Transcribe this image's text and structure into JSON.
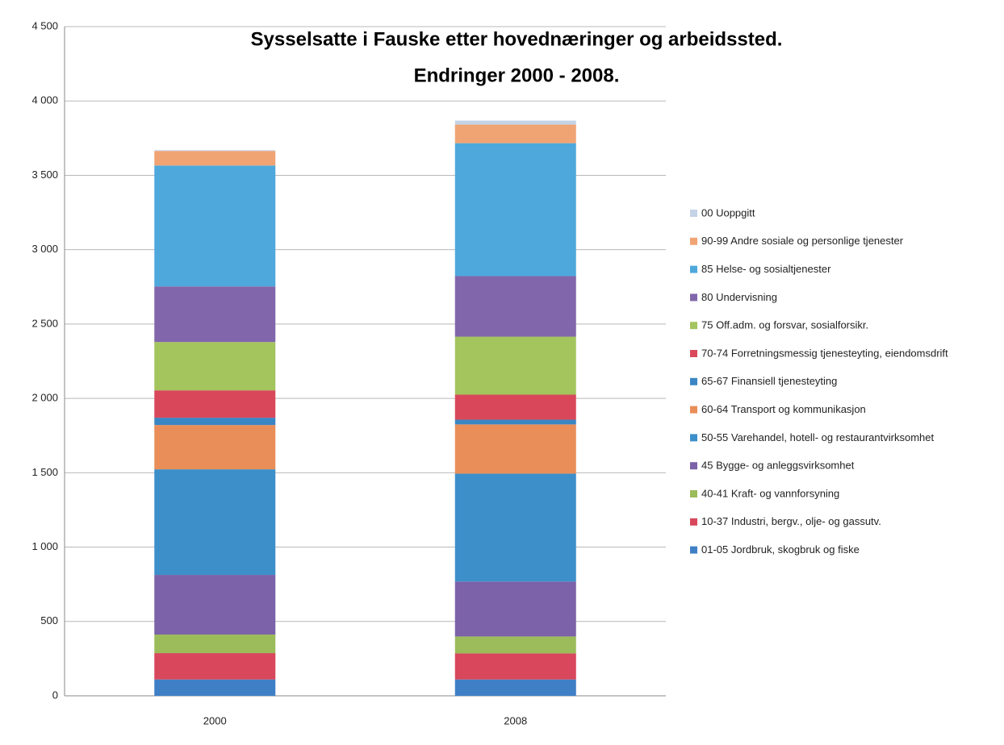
{
  "chart_data": {
    "type": "stacked_bar",
    "title": "Sysselsatte i Fauske etter hovednæringer og arbeidssted.",
    "subtitle": "Endringer 2000 - 2008.",
    "categories": [
      "2000",
      "2008"
    ],
    "ylim": [
      0,
      4500
    ],
    "yticks": [
      0,
      500,
      {
        "value": 1000,
        "label": "1 000"
      },
      {
        "value": 1500,
        "label": "1 500"
      },
      {
        "value": 2000,
        "label": "2 000"
      },
      {
        "value": 2500,
        "label": "2 500"
      },
      {
        "value": 3000,
        "label": "3 000"
      },
      {
        "value": 3500,
        "label": "3 500"
      },
      {
        "value": 4000,
        "label": "4 000"
      },
      {
        "value": 4500,
        "label": "4 500"
      }
    ],
    "grid": true,
    "legend": "right",
    "series": [
      {
        "name": "01-05 Jordbruk, skogbruk og fiske",
        "color": "#3f7fc6",
        "values": [
          110,
          110
        ]
      },
      {
        "name": "10-37 Industri, bergv., olje- og gassutv.",
        "color": "#d8475c",
        "values": [
          177,
          175
        ]
      },
      {
        "name": "40-41 Kraft- og vannforsyning",
        "color": "#9cbb5a",
        "values": [
          125,
          114
        ]
      },
      {
        "name": "45 Bygge- og anleggsvirksomhet",
        "color": "#7c62a8",
        "values": [
          401,
          369
        ]
      },
      {
        "name": "50-55 Varehandel, hotell- og restaurantvirksomhet",
        "color": "#3d8fca",
        "values": [
          710,
          726
        ]
      },
      {
        "name": "60-64 Transport og kommunikasjon",
        "color": "#e98e58",
        "values": [
          298,
          331
        ]
      },
      {
        "name": "65-67 Finansiell tjenesteyting",
        "color": "#3b86c4",
        "values": [
          49,
          32
        ]
      },
      {
        "name": "70-74 Forretningsmessig tjenesteyting, eiendomsdrift",
        "color": "#d9485a",
        "values": [
          184,
          168
        ]
      },
      {
        "name": "75 Off.adm. og forsvar, sosialforsikr.",
        "color": "#a4c45e",
        "values": [
          325,
          390
        ]
      },
      {
        "name": "80 Undervisning",
        "color": "#8266ab",
        "values": [
          374,
          407
        ]
      },
      {
        "name": "85 Helse- og sosialtjenester",
        "color": "#4ea8dc",
        "values": [
          813,
          894
        ]
      },
      {
        "name": "90-99 Andre sosiale og personlige tjenester",
        "color": "#f0a474",
        "values": [
          98,
          125
        ]
      },
      {
        "name": "00 Uoppgitt",
        "color": "#c4d3e6",
        "values": [
          5,
          27
        ]
      }
    ]
  }
}
